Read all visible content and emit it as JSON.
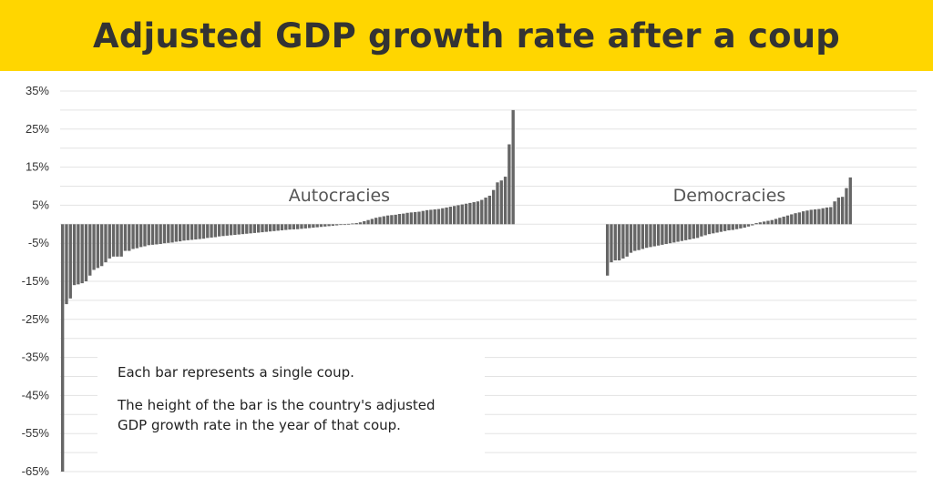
{
  "header": {
    "title": "Adjusted GDP growth rate after a coup"
  },
  "note": {
    "line1": "Each bar represents a single coup.",
    "line2": "The height of the bar is the country's adjusted GDP growth rate in the year of that coup."
  },
  "colors": {
    "banner": "#FFD600",
    "bar": "#666666",
    "grid": "#e3e3e3",
    "title": "#333333"
  },
  "chart_data": {
    "type": "bar",
    "title": "Adjusted GDP growth rate after a coup",
    "xlabel": "",
    "ylabel": "",
    "ylim": [
      -65,
      35
    ],
    "yticks": [
      "35%",
      "25%",
      "15%",
      "5%",
      "-5%",
      "-15%",
      "-25%",
      "-35%",
      "-45%",
      "-55%",
      "-65%"
    ],
    "grid": true,
    "series": [
      {
        "name": "Autocracies",
        "values": [
          -65,
          -21,
          -19.5,
          -16,
          -15.8,
          -15.5,
          -15,
          -13.5,
          -12,
          -11.5,
          -11,
          -10,
          -9,
          -8.5,
          -8.5,
          -8.5,
          -7,
          -7,
          -6.5,
          -6.3,
          -6,
          -5.8,
          -5.5,
          -5.4,
          -5.3,
          -5.2,
          -5,
          -4.9,
          -4.8,
          -4.6,
          -4.5,
          -4.3,
          -4.2,
          -4.1,
          -4,
          -3.9,
          -3.8,
          -3.6,
          -3.5,
          -3.4,
          -3.2,
          -3.1,
          -3,
          -2.9,
          -2.8,
          -2.7,
          -2.6,
          -2.5,
          -2.4,
          -2.3,
          -2.2,
          -2.1,
          -2,
          -1.9,
          -1.8,
          -1.7,
          -1.6,
          -1.5,
          -1.4,
          -1.35,
          -1.3,
          -1.2,
          -1.1,
          -1,
          -0.9,
          -0.8,
          -0.7,
          -0.6,
          -0.5,
          -0.4,
          -0.3,
          -0.2,
          -0.1,
          0.1,
          0.2,
          0.3,
          0.5,
          0.8,
          1.1,
          1.4,
          1.7,
          1.9,
          2.1,
          2.3,
          2.4,
          2.5,
          2.7,
          2.8,
          3.0,
          3.1,
          3.2,
          3.3,
          3.5,
          3.7,
          3.8,
          3.9,
          4.0,
          4.2,
          4.4,
          4.6,
          4.8,
          5.0,
          5.2,
          5.4,
          5.6,
          5.8,
          6.0,
          6.4,
          7.0,
          7.5,
          9,
          11,
          11.5,
          12.5,
          21,
          30
        ]
      },
      {
        "name": "Democracies",
        "values": [
          -13.5,
          -10,
          -9.5,
          -9.5,
          -9,
          -8.5,
          -7.5,
          -7,
          -6.8,
          -6.5,
          -6.2,
          -6,
          -5.8,
          -5.6,
          -5.4,
          -5.2,
          -5,
          -4.8,
          -4.6,
          -4.4,
          -4.2,
          -4,
          -3.8,
          -3.6,
          -3.2,
          -2.9,
          -2.6,
          -2.4,
          -2.2,
          -2.0,
          -1.8,
          -1.6,
          -1.5,
          -1.3,
          -1.1,
          -0.9,
          -0.6,
          -0.3,
          0.3,
          0.5,
          0.7,
          0.9,
          1.1,
          1.4,
          1.7,
          2.0,
          2.3,
          2.6,
          2.9,
          3.1,
          3.4,
          3.6,
          3.8,
          3.9,
          4.0,
          4.2,
          4.4,
          4.5,
          6.0,
          7.0,
          7.2,
          9.5,
          12.3
        ]
      }
    ]
  }
}
